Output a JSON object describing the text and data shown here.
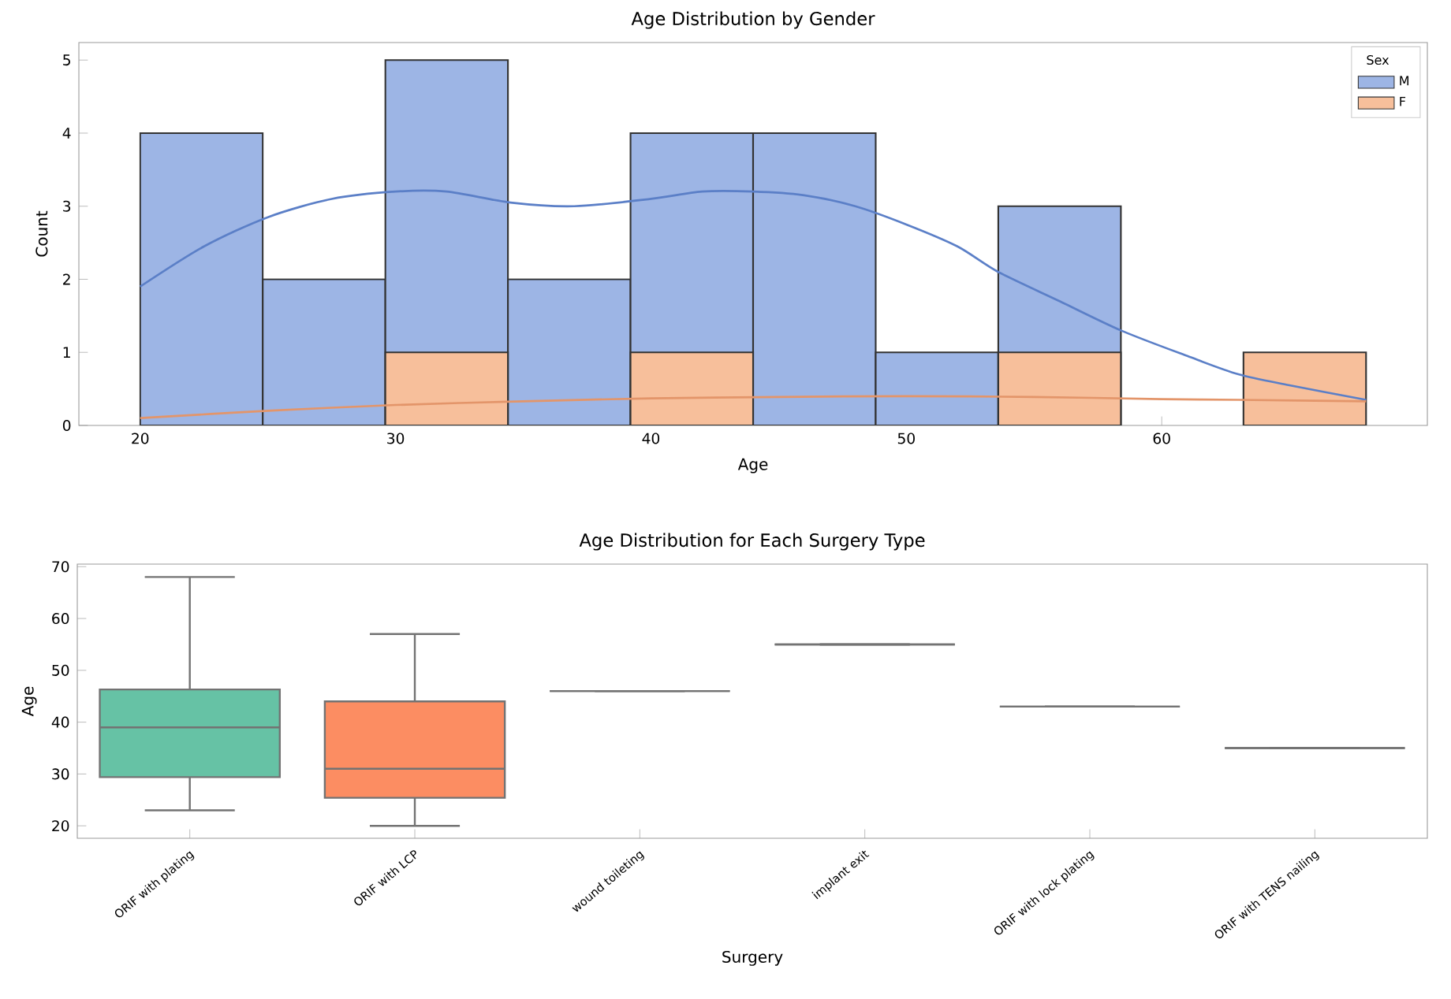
{
  "chart_data": [
    {
      "type": "histogram",
      "title": "Age Distribution by Gender",
      "xlabel": "Age",
      "ylabel": "Count",
      "legend_title": "Sex",
      "legend": "top right",
      "bins": [
        20,
        24.8,
        29.6,
        34.4,
        39.2,
        44,
        48.8,
        53.6,
        58.4,
        63.2,
        68
      ],
      "series": [
        {
          "name": "M",
          "color": "#9db5e5",
          "values": [
            4,
            2,
            5,
            2,
            4,
            4,
            1,
            3,
            0,
            0
          ]
        },
        {
          "name": "F",
          "color": "#f7bf9b",
          "values": [
            0,
            0,
            1,
            0,
            1,
            0,
            0,
            1,
            0,
            1
          ]
        },
        {
          "type": "line",
          "color": "#5b7fc7",
          "x": [
            20,
            22.5,
            25,
            27.5,
            30,
            32,
            34.5,
            37,
            40,
            42,
            44,
            46,
            48,
            50,
            52,
            53.6,
            56,
            58.4,
            61,
            63,
            65,
            68
          ],
          "values": [
            1.9,
            2.45,
            2.85,
            3.1,
            3.2,
            3.2,
            3.05,
            3.0,
            3.1,
            3.2,
            3.2,
            3.15,
            3.0,
            2.75,
            2.45,
            2.1,
            1.7,
            1.3,
            0.95,
            0.7,
            0.55,
            0.35
          ]
        },
        {
          "type": "line",
          "color": "#e3956a",
          "x": [
            20,
            25,
            30,
            35,
            40,
            45,
            50,
            55,
            60,
            63,
            68
          ],
          "values": [
            0.1,
            0.2,
            0.28,
            0.33,
            0.37,
            0.39,
            0.4,
            0.39,
            0.36,
            0.35,
            0.33
          ]
        }
      ],
      "xlim": [
        17.6,
        70.4
      ],
      "ylim": [
        0,
        5.24
      ],
      "xticks": [
        20,
        30,
        40,
        50,
        60
      ],
      "yticks": [
        0,
        1,
        2,
        3,
        4,
        5
      ]
    },
    {
      "type": "box",
      "title": "Age Distribution for Each Surgery Type",
      "xlabel": "Surgery",
      "ylabel": "Age",
      "categories": [
        "ORIF with plating",
        "ORIF with LCP",
        "wound toileting",
        "implant exit",
        "ORIF with lock plating",
        "ORIF with TENS nailing"
      ],
      "colors": [
        "#66c2a5",
        "#fc8d62",
        "#737373",
        "#737373",
        "#737373",
        "#737373"
      ],
      "boxes": [
        {
          "low": 23,
          "q1": 29.4,
          "median": 39,
          "q3": 46.3,
          "high": 68
        },
        {
          "low": 20,
          "q1": 25.4,
          "median": 31,
          "q3": 44,
          "high": 57
        },
        {
          "low": 46,
          "q1": 46,
          "median": 46,
          "q3": 46,
          "high": 46
        },
        {
          "low": 55,
          "q1": 55,
          "median": 55,
          "q3": 55,
          "high": 55
        },
        {
          "low": 43,
          "q1": 43,
          "median": 43,
          "q3": 43,
          "high": 43
        },
        {
          "low": 35,
          "q1": 35,
          "median": 35,
          "q3": 35,
          "high": 35
        }
      ],
      "ylim": [
        17.6,
        70.5
      ],
      "yticks": [
        20,
        30,
        40,
        50,
        60,
        70
      ]
    }
  ]
}
